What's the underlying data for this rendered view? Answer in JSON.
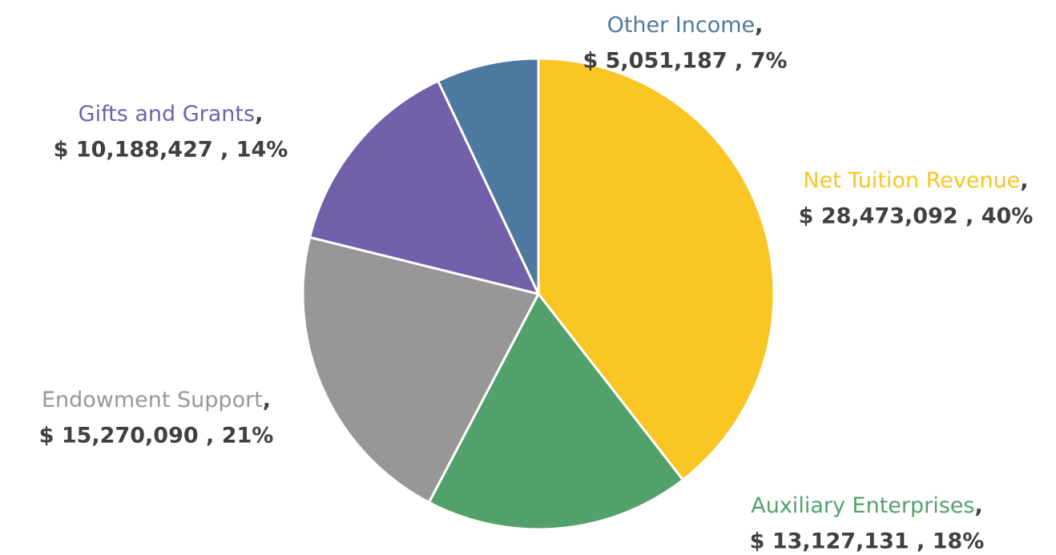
{
  "chart_data": {
    "type": "pie",
    "categories": [
      "Net Tuition Revenue",
      "Auxiliary Enterprises",
      "Endowment Support",
      "Gifts and Grants",
      "Other Income"
    ],
    "values": [
      28473092,
      13127131,
      15270090,
      10188427,
      5051187
    ],
    "value_labels": [
      "$  28,473,092 , 40%",
      "$ 13,127,131 , 18%",
      "$ 15,270,090 , 21%",
      "$ 10,188,427 , 14%",
      "$ 5,051,187 , 7%"
    ],
    "label_separator": ",",
    "colors": [
      "#f9c623",
      "#52a16b",
      "#979797",
      "#7260aa",
      "#4e79a0"
    ]
  }
}
